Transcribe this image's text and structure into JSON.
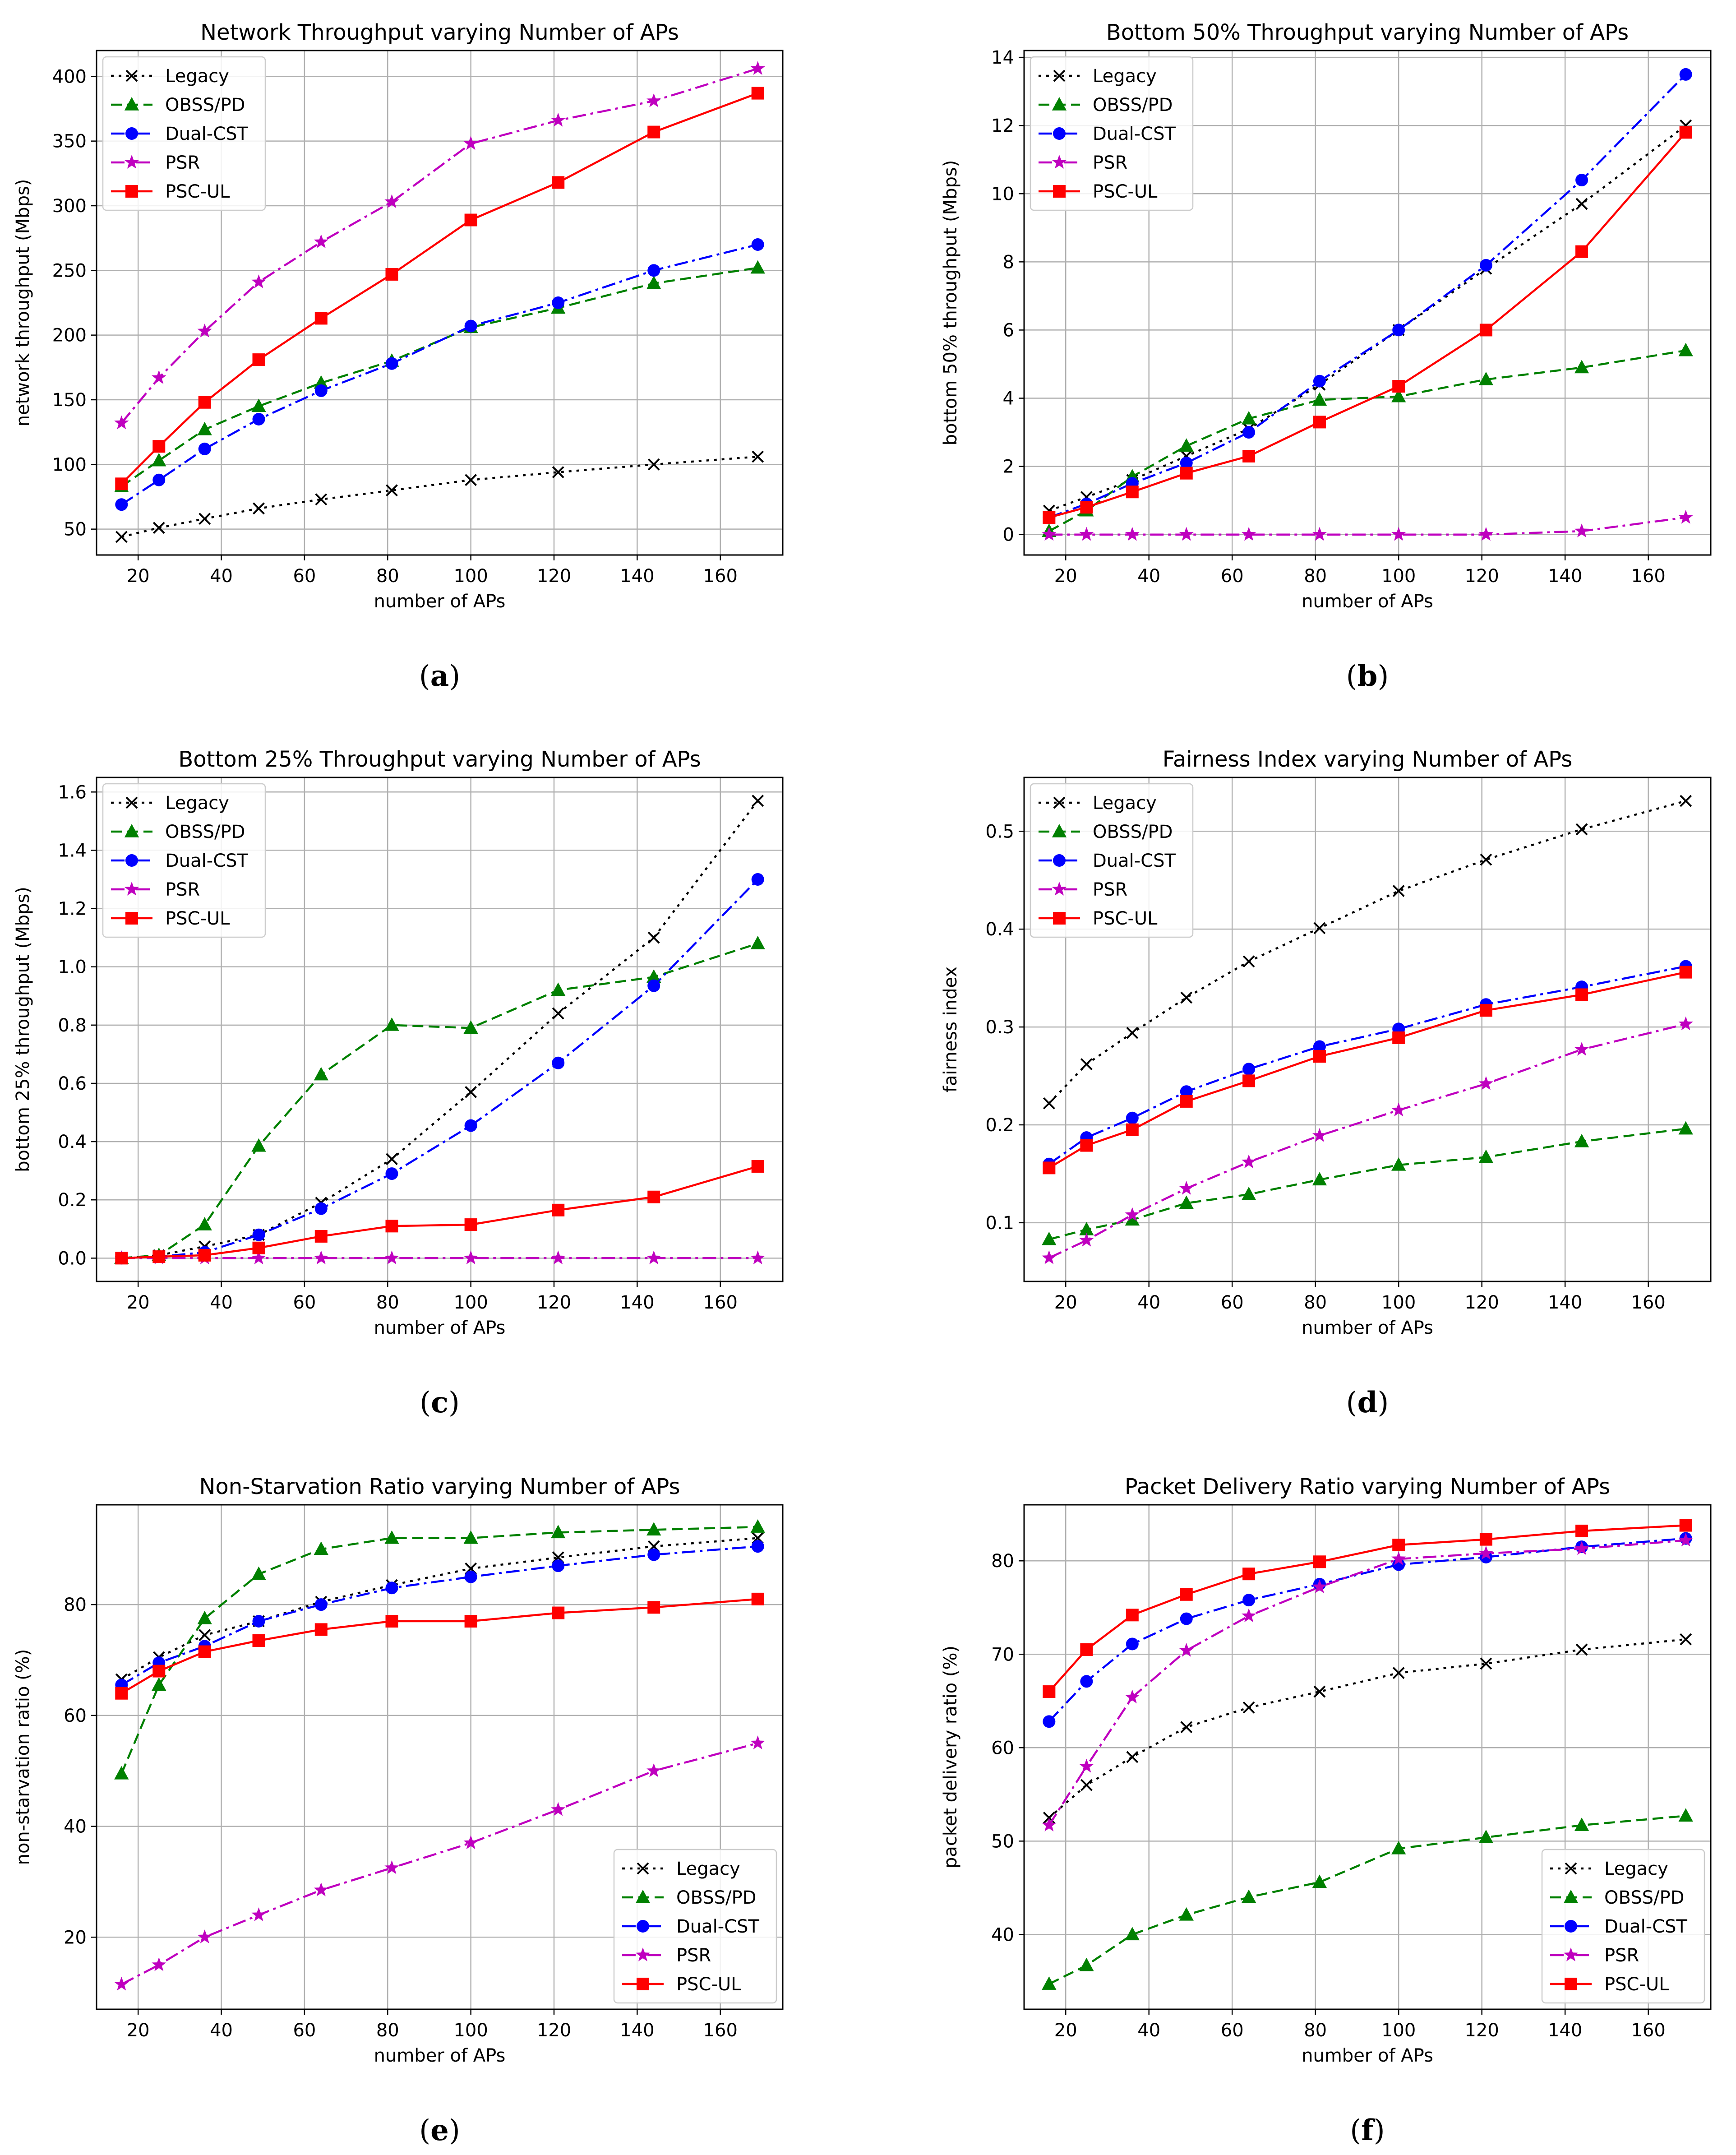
{
  "chart_data": [
    {
      "type": "line",
      "title": "Network Throughput varying Number of APs",
      "xlabel": "number of APs",
      "ylabel": "network throughput (Mbps)",
      "caption": "a",
      "x": [
        16,
        25,
        36,
        49,
        64,
        81,
        100,
        121,
        144,
        169
      ],
      "xlim": [
        10,
        175
      ],
      "ylim": [
        30,
        420
      ],
      "xticks": [
        20,
        40,
        60,
        80,
        100,
        120,
        140,
        160
      ],
      "yticks": [
        50,
        100,
        150,
        200,
        250,
        300,
        350,
        400
      ],
      "grid": true,
      "legend": "top-left",
      "series": [
        {
          "name": "Legacy",
          "values": [
            44,
            51,
            58,
            66,
            73,
            80,
            88,
            94,
            100,
            106
          ]
        },
        {
          "name": "OBSS/PD",
          "values": [
            83,
            103,
            127,
            145,
            163,
            180,
            206,
            221,
            240,
            252
          ]
        },
        {
          "name": "Dual-CST",
          "values": [
            69,
            88,
            112,
            135,
            157,
            178,
            207,
            225,
            250,
            270
          ]
        },
        {
          "name": "PSR",
          "values": [
            132,
            167,
            203,
            241,
            272,
            303,
            348,
            366,
            381,
            406
          ]
        },
        {
          "name": "PSC-UL",
          "values": [
            85,
            114,
            148,
            181,
            213,
            247,
            289,
            318,
            357,
            387
          ]
        }
      ]
    },
    {
      "type": "line",
      "title": "Bottom 50% Throughput varying Number of APs",
      "xlabel": "number of APs",
      "ylabel": "bottom 50% throughput (Mbps)",
      "caption": "b",
      "x": [
        16,
        25,
        36,
        49,
        64,
        81,
        100,
        121,
        144,
        169
      ],
      "xlim": [
        10,
        175
      ],
      "ylim": [
        -0.6,
        14.2
      ],
      "xticks": [
        20,
        40,
        60,
        80,
        100,
        120,
        140,
        160
      ],
      "yticks": [
        0,
        2,
        4,
        6,
        8,
        10,
        12,
        14
      ],
      "grid": true,
      "legend": "top-left",
      "series": [
        {
          "name": "Legacy",
          "values": [
            0.7,
            1.1,
            1.6,
            2.3,
            3.1,
            4.4,
            6.0,
            7.8,
            9.7,
            12.0
          ]
        },
        {
          "name": "OBSS/PD",
          "values": [
            0.1,
            0.7,
            1.7,
            2.6,
            3.4,
            3.95,
            4.05,
            4.55,
            4.9,
            5.4
          ]
        },
        {
          "name": "Dual-CST",
          "values": [
            0.5,
            0.9,
            1.5,
            2.1,
            3.0,
            4.5,
            6.0,
            7.9,
            10.4,
            13.5
          ]
        },
        {
          "name": "PSR",
          "values": [
            0,
            0,
            0,
            0,
            0,
            0,
            0,
            0,
            0.1,
            0.5
          ]
        },
        {
          "name": "PSC-UL",
          "values": [
            0.5,
            0.8,
            1.25,
            1.8,
            2.3,
            3.3,
            4.35,
            6.0,
            8.3,
            11.8
          ]
        }
      ]
    },
    {
      "type": "line",
      "title": "Bottom 25% Throughput varying Number of APs",
      "xlabel": "number of APs",
      "ylabel": "bottom 25% throughput (Mbps)",
      "caption": "c",
      "x": [
        16,
        25,
        36,
        49,
        64,
        81,
        100,
        121,
        144,
        169
      ],
      "xlim": [
        10,
        175
      ],
      "ylim": [
        -0.08,
        1.65
      ],
      "xticks": [
        20,
        40,
        60,
        80,
        100,
        120,
        140,
        160
      ],
      "yticks": [
        0.0,
        0.2,
        0.4,
        0.6,
        0.8,
        1.0,
        1.2,
        1.4,
        1.6
      ],
      "ytick_labels": [
        "0.0",
        "0.2",
        "0.4",
        "0.6",
        "0.8",
        "1.0",
        "1.2",
        "1.4",
        "1.6"
      ],
      "grid": true,
      "legend": "top-left",
      "series": [
        {
          "name": "Legacy",
          "values": [
            0.0,
            0.01,
            0.04,
            0.08,
            0.19,
            0.34,
            0.57,
            0.84,
            1.1,
            1.57
          ]
        },
        {
          "name": "OBSS/PD",
          "values": [
            0.0,
            0.01,
            0.115,
            0.385,
            0.63,
            0.8,
            0.79,
            0.92,
            0.965,
            1.08
          ]
        },
        {
          "name": "Dual-CST",
          "values": [
            0.0,
            0.005,
            0.02,
            0.08,
            0.17,
            0.29,
            0.455,
            0.67,
            0.935,
            1.3
          ]
        },
        {
          "name": "PSR",
          "values": [
            0,
            0,
            0,
            0,
            0,
            0,
            0,
            0,
            0,
            0
          ]
        },
        {
          "name": "PSC-UL",
          "values": [
            0.0,
            0.005,
            0.01,
            0.035,
            0.075,
            0.11,
            0.115,
            0.165,
            0.21,
            0.315
          ]
        }
      ]
    },
    {
      "type": "line",
      "title": "Fairness Index varying Number of APs",
      "xlabel": "number of APs",
      "ylabel": "fairness index",
      "caption": "d",
      "x": [
        16,
        25,
        36,
        49,
        64,
        81,
        100,
        121,
        144,
        169
      ],
      "xlim": [
        10,
        175
      ],
      "ylim": [
        0.04,
        0.555
      ],
      "xticks": [
        20,
        40,
        60,
        80,
        100,
        120,
        140,
        160
      ],
      "yticks": [
        0.1,
        0.2,
        0.3,
        0.4,
        0.5
      ],
      "ytick_labels": [
        "0.1",
        "0.2",
        "0.3",
        "0.4",
        "0.5"
      ],
      "grid": true,
      "legend": "top-left",
      "series": [
        {
          "name": "Legacy",
          "values": [
            0.222,
            0.262,
            0.294,
            0.33,
            0.367,
            0.401,
            0.439,
            0.471,
            0.502,
            0.531
          ]
        },
        {
          "name": "OBSS/PD",
          "values": [
            0.083,
            0.093,
            0.103,
            0.12,
            0.129,
            0.144,
            0.159,
            0.167,
            0.183,
            0.196
          ]
        },
        {
          "name": "Dual-CST",
          "values": [
            0.16,
            0.187,
            0.207,
            0.234,
            0.257,
            0.28,
            0.298,
            0.323,
            0.341,
            0.362
          ]
        },
        {
          "name": "PSR",
          "values": [
            0.064,
            0.082,
            0.108,
            0.135,
            0.162,
            0.189,
            0.215,
            0.242,
            0.277,
            0.303
          ]
        },
        {
          "name": "PSC-UL",
          "values": [
            0.156,
            0.179,
            0.195,
            0.224,
            0.245,
            0.27,
            0.289,
            0.317,
            0.333,
            0.356
          ]
        }
      ]
    },
    {
      "type": "line",
      "title": "Non-Starvation Ratio varying Number of APs",
      "xlabel": "number of APs",
      "ylabel": "non-starvation ratio (%)",
      "caption": "e",
      "x": [
        16,
        25,
        36,
        49,
        64,
        81,
        100,
        121,
        144,
        169
      ],
      "xlim": [
        10,
        175
      ],
      "ylim": [
        7,
        98
      ],
      "xticks": [
        20,
        40,
        60,
        80,
        100,
        120,
        140,
        160
      ],
      "yticks": [
        20,
        40,
        60,
        80
      ],
      "grid": true,
      "legend": "bottom-right",
      "series": [
        {
          "name": "Legacy",
          "values": [
            66.5,
            70.5,
            74.5,
            77,
            80.5,
            83.5,
            86.5,
            88.5,
            90.5,
            92
          ]
        },
        {
          "name": "OBSS/PD",
          "values": [
            49.5,
            65.5,
            77.5,
            85.5,
            90,
            92,
            92,
            93,
            93.5,
            94
          ]
        },
        {
          "name": "Dual-CST",
          "values": [
            65.5,
            69.5,
            72.5,
            77,
            80,
            83,
            85,
            87,
            89,
            90.5
          ]
        },
        {
          "name": "PSR",
          "values": [
            11.5,
            15,
            20,
            24,
            28.5,
            32.5,
            37,
            43,
            50,
            55
          ]
        },
        {
          "name": "PSC-UL",
          "values": [
            64,
            68,
            71.5,
            73.5,
            75.5,
            77,
            77,
            78.5,
            79.5,
            81
          ]
        }
      ]
    },
    {
      "type": "line",
      "title": "Packet Delivery Ratio varying Number of APs",
      "xlabel": "number of APs",
      "ylabel": "packet delivery ratio (%)",
      "caption": "f",
      "x": [
        16,
        25,
        36,
        49,
        64,
        81,
        100,
        121,
        144,
        169
      ],
      "xlim": [
        10,
        175
      ],
      "ylim": [
        32,
        86
      ],
      "xticks": [
        20,
        40,
        60,
        80,
        100,
        120,
        140,
        160
      ],
      "yticks": [
        40,
        50,
        60,
        70,
        80
      ],
      "grid": true,
      "legend": "bottom-right",
      "series": [
        {
          "name": "Legacy",
          "values": [
            52.5,
            56,
            59,
            62.2,
            64.3,
            66,
            68,
            69,
            70.5,
            71.6
          ]
        },
        {
          "name": "OBSS/PD",
          "values": [
            34.7,
            36.7,
            40,
            42.1,
            44,
            45.6,
            49.2,
            50.4,
            51.7,
            52.7
          ]
        },
        {
          "name": "Dual-CST",
          "values": [
            62.8,
            67.1,
            71.1,
            73.8,
            75.8,
            77.5,
            79.6,
            80.4,
            81.5,
            82.4
          ]
        },
        {
          "name": "PSR",
          "values": [
            51.7,
            58,
            65.4,
            70.4,
            74.1,
            77.2,
            80.2,
            80.8,
            81.3,
            82.2
          ]
        },
        {
          "name": "PSC-UL",
          "values": [
            66,
            70.5,
            74.2,
            76.4,
            78.6,
            79.9,
            81.7,
            82.3,
            83.2,
            83.8
          ]
        }
      ]
    }
  ],
  "styles": {
    "Legacy": {
      "color": "#000000",
      "dash": "dotted",
      "marker": "x"
    },
    "OBSS/PD": {
      "color": "#008000",
      "dash": "dashed",
      "marker": "triangle"
    },
    "Dual-CST": {
      "color": "#0000ff",
      "dash": "dashdot",
      "marker": "circle"
    },
    "PSR": {
      "color": "#bf00bf",
      "dash": "dashdot",
      "marker": "star"
    },
    "PSC-UL": {
      "color": "#ff0000",
      "dash": "solid",
      "marker": "square"
    }
  },
  "colors": {
    "grid": "#b0b0b0",
    "axes": "#000000",
    "legend_border": "#cccccc"
  }
}
